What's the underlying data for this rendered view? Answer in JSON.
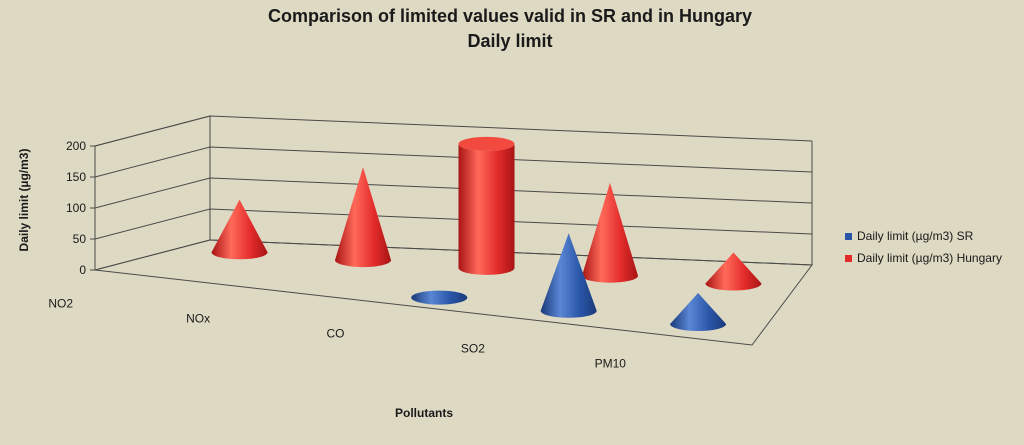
{
  "chart_data": {
    "type": "bar",
    "title": "Comparison of limited values valid in SR and in Hungary",
    "subtitle": "Daily limit",
    "xlabel": "Pollutants",
    "ylabel": "Daily limit (µg/m3)",
    "categories": [
      "NO2",
      "NOx",
      "CO",
      "SO2",
      "PM10"
    ],
    "ylim": [
      0,
      200
    ],
    "yticks": [
      0,
      50,
      100,
      150,
      200
    ],
    "grid": true,
    "legend_position": "right",
    "series": [
      {
        "name": "Daily limit (µg/m3) SR",
        "values": [
          null,
          null,
          5,
          125,
          50
        ],
        "color": "#2a56a8",
        "shape": "cone"
      },
      {
        "name": "Daily limit (µg/m3) Hungary",
        "values": [
          85,
          150,
          200,
          150,
          50
        ],
        "color": "#e32b2b",
        "shape": [
          "cone",
          "cone",
          "cylinder",
          "cone",
          "cone"
        ]
      }
    ]
  }
}
